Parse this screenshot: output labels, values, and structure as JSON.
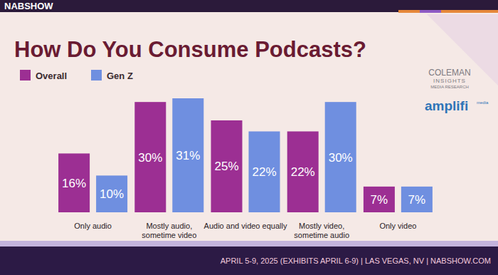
{
  "chart_data": {
    "type": "bar",
    "title": "How Do You Consume Podcasts?",
    "categories": [
      "Only audio",
      "Mostly audio, sometime video",
      "Audio and video equally",
      "Mostly video, sometime audio",
      "Only video"
    ],
    "series": [
      {
        "name": "Overall",
        "color": "#9c2f93",
        "values": [
          16,
          30,
          25,
          22,
          7
        ],
        "value_labels": [
          "16%",
          "30%",
          "25%",
          "22%",
          "7%"
        ]
      },
      {
        "name": "Gen Z",
        "color": "#6f8fe0",
        "values": [
          10,
          31,
          22,
          30,
          7
        ],
        "value_labels": [
          "10%",
          "31%",
          "22%",
          "30%",
          "7%"
        ]
      }
    ],
    "ylim": [
      0,
      31
    ],
    "grid": false,
    "legend": "top-left",
    "data_labels": true,
    "tick_labels": false
  },
  "slide": {
    "brand": "NABSHOW",
    "logos": [
      "COLEMAN",
      "INSIGHTS",
      "MEDIA RESEARCH",
      "amplifi",
      "media"
    ],
    "footer": "APRIL 5-9, 2025 (EXHIBITS APRIL 6-9) | LAS VEGAS, NV | NABSHOW.COM"
  }
}
